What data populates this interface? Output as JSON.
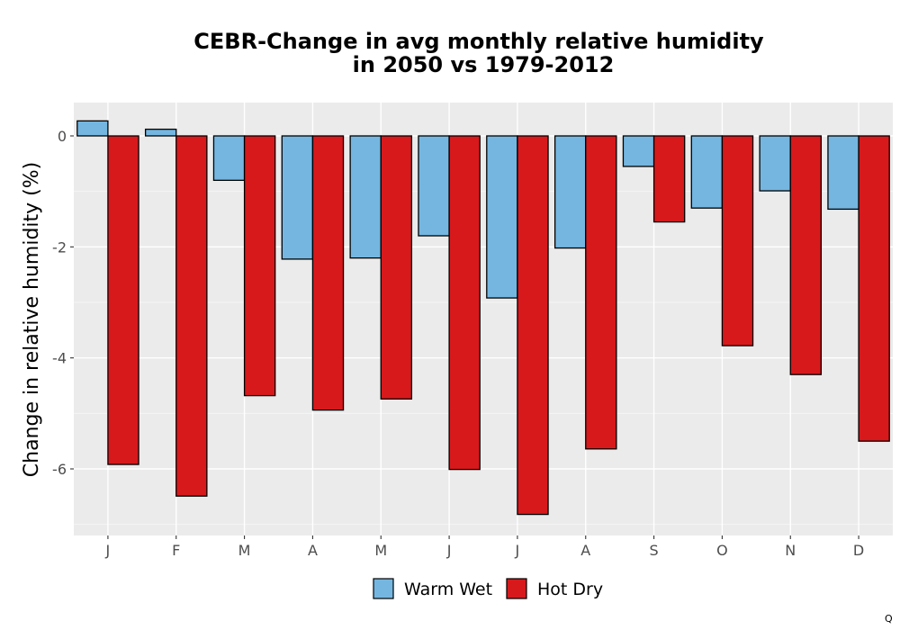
{
  "chart_data": {
    "type": "bar",
    "title_lines": [
      "CEBR-Change in avg monthly relative humidity",
      "in 2050 vs 1979-2012"
    ],
    "xlabel": "",
    "ylabel": "Change in relative humidity (%)",
    "categories": [
      "J",
      "F",
      "M",
      "A",
      "M",
      "J",
      "J",
      "A",
      "S",
      "O",
      "N",
      "D"
    ],
    "series": [
      {
        "name": "Warm Wet",
        "color": "#74B6E0",
        "values": [
          0.27,
          0.12,
          -0.8,
          -2.22,
          -2.2,
          -1.8,
          -2.92,
          -2.02,
          -0.55,
          -1.3,
          -0.99,
          -1.32
        ]
      },
      {
        "name": "Hot Dry",
        "color": "#D7191C",
        "values": [
          -5.92,
          -6.49,
          -4.68,
          -4.94,
          -4.74,
          -6.01,
          -6.82,
          -5.64,
          -1.55,
          -3.78,
          -4.3,
          -5.5
        ]
      }
    ],
    "ylim": [
      -7.2,
      0.6
    ],
    "yticks": [
      0,
      -2,
      -4,
      -6
    ],
    "ytick_labels": [
      "0",
      "-2",
      "-4",
      "-6"
    ],
    "grid": true,
    "legend_position": "bottom"
  },
  "corner_mark": "Q"
}
